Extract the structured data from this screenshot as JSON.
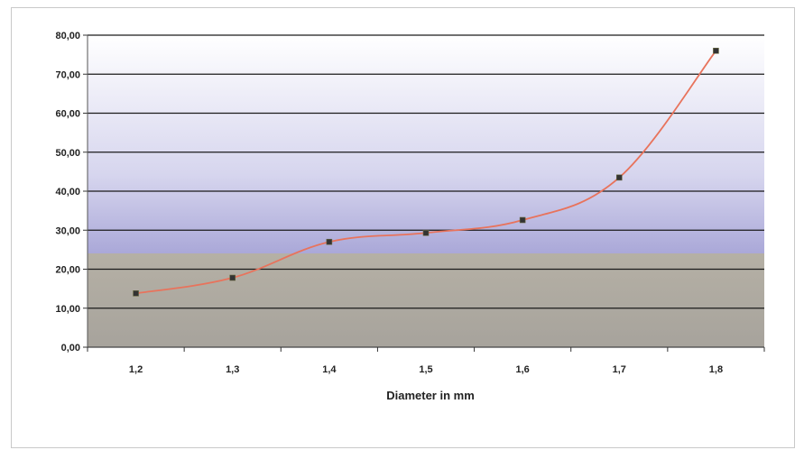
{
  "chart_data": {
    "type": "line",
    "title": "",
    "xlabel": "Diameter in mm",
    "ylabel": "",
    "categories": [
      "1,2",
      "1,3",
      "1,4",
      "1,5",
      "1,6",
      "1,7",
      "1,8"
    ],
    "series": [
      {
        "values": [
          13.8,
          17.8,
          27.0,
          29.3,
          32.6,
          43.5,
          76.0
        ]
      }
    ],
    "ylim": [
      0,
      80
    ],
    "yticks": [
      "0,00",
      "10,00",
      "20,00",
      "30,00",
      "40,00",
      "50,00",
      "60,00",
      "70,00",
      "80,00"
    ],
    "ytick_values": [
      0,
      10,
      20,
      30,
      40,
      50,
      60,
      70,
      80
    ],
    "grid": true,
    "legend": "none",
    "colors": {
      "line": "#e8735c",
      "marker": "#333333",
      "gridline": "#1a1a1a",
      "band_top": "#ffffff",
      "band_mid": "#a9a7d6",
      "band_bottom": "#b3aea5"
    }
  }
}
